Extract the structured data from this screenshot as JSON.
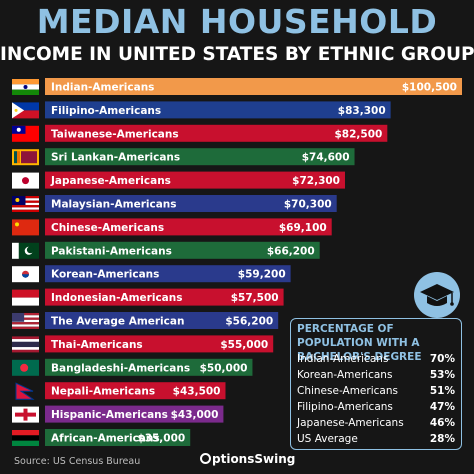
{
  "header": {
    "title": "MEDIAN HOUSEHOLD",
    "subtitle": "INCOME IN UNITED STATES BY ETHNIC GROUP"
  },
  "colors": {
    "background": "#161616",
    "title_accent": "#8fc1e3"
  },
  "chart_data": {
    "type": "bar",
    "orientation": "horizontal",
    "title": "MEDIAN HOUSEHOLD INCOME IN UNITED STATES BY ETHNIC GROUP",
    "xlabel": "",
    "ylabel": "",
    "xlim": [
      0,
      100500
    ],
    "grid": false,
    "categories": [
      "Indian-Americans",
      "Filipino-Americans",
      "Taiwanese-Americans",
      "Sri Lankan-Americans",
      "Japanese-Americans",
      "Malaysian-Americans",
      "Chinese-Americans",
      "Pakistani-Americans",
      "Korean-Americans",
      "Indonesian-Americans",
      "The Average American",
      "Thai-Americans",
      "Bangladeshi-Americans",
      "Nepali-Americans",
      "Hispanic-Americans",
      "African-Americans"
    ],
    "values": [
      100500,
      83300,
      82500,
      74600,
      72300,
      70300,
      69100,
      66200,
      59200,
      57500,
      56200,
      55000,
      50000,
      43500,
      43000,
      35000
    ],
    "value_labels": [
      "$100,500",
      "$83,300",
      "$82,500",
      "$74,600",
      "$72,300",
      "$70,300",
      "$69,100",
      "$66,200",
      "$59,200",
      "$57,500",
      "$56,200",
      "$55,000",
      "$50,000",
      "$43,500",
      "$43,000",
      "$35,000"
    ],
    "bar_colors": [
      "#f2994a",
      "#1f3f8f",
      "#c8102e",
      "#1e6b3a",
      "#c8102e",
      "#2a3a8c",
      "#c8102e",
      "#1e6b3a",
      "#2a3a8c",
      "#c8102e",
      "#2a3a8c",
      "#c8102e",
      "#1e6b3a",
      "#c8102e",
      "#7b2a8c",
      "#1e6b3a"
    ],
    "flags": [
      "flag-india",
      "flag-philippines",
      "flag-taiwan",
      "flag-sri-lanka",
      "flag-japan",
      "flag-malaysia",
      "flag-china",
      "flag-pakistan",
      "flag-south-korea",
      "flag-indonesia",
      "flag-usa",
      "flag-thailand",
      "flag-bangladesh",
      "flag-nepal",
      "flag-hispanic",
      "flag-pan-african"
    ]
  },
  "education": {
    "title": "PERCENTAGE OF POPULATION WITH A BACHELOR'S DEGREE",
    "rows": [
      {
        "group": "Indian-Americans",
        "value": "70%"
      },
      {
        "group": "Korean-Americans",
        "value": "53%"
      },
      {
        "group": "Chinese-Americans",
        "value": "51%"
      },
      {
        "group": "Filipino-Americans",
        "value": "47%"
      },
      {
        "group": "Japanese-Americans",
        "value": "46%"
      },
      {
        "group": "US Average",
        "value": "28%"
      }
    ],
    "icon": "graduation-cap-icon"
  },
  "footer": {
    "source": "Source: US Census Bureau",
    "brand": "ptionsSwing"
  }
}
